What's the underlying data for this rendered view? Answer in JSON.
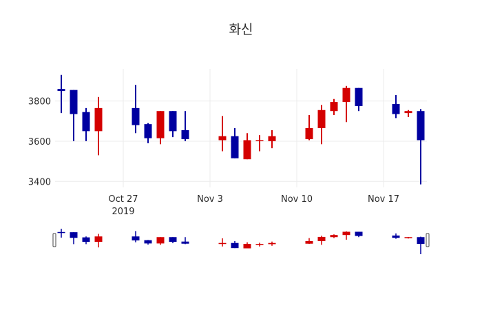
{
  "title": "화신",
  "colors": {
    "increasing": "#d40000",
    "decreasing": "#0000a0",
    "grid": "#ebebeb",
    "text": "#2a2a2a"
  },
  "chart_data": {
    "type": "candlestick",
    "title": "화신",
    "xlabel": "",
    "ylabel": "",
    "ylim": [
      3370,
      3960
    ],
    "yticks": [
      3400,
      3600,
      3800
    ],
    "xticks": [
      {
        "date": "2019-10-27",
        "label": "Oct 27",
        "sublabel": "2019"
      },
      {
        "date": "2019-11-03",
        "label": "Nov 3",
        "sublabel": ""
      },
      {
        "date": "2019-11-10",
        "label": "Nov 10",
        "sublabel": ""
      },
      {
        "date": "2019-11-17",
        "label": "Nov 17",
        "sublabel": ""
      }
    ],
    "xrange": [
      "2019-10-21T12:00",
      "2019-11-20T12:00"
    ],
    "rangeslider": true,
    "grid": true,
    "legend": false,
    "series": [
      {
        "date": "2019-10-22",
        "open": 3860,
        "high": 3930,
        "low": 3740,
        "close": 3850
      },
      {
        "date": "2019-10-23",
        "open": 3855,
        "high": 3855,
        "low": 3600,
        "close": 3735
      },
      {
        "date": "2019-10-24",
        "open": 3745,
        "high": 3765,
        "low": 3600,
        "close": 3650
      },
      {
        "date": "2019-10-25",
        "open": 3650,
        "high": 3820,
        "low": 3530,
        "close": 3765
      },
      {
        "date": "2019-10-28",
        "open": 3765,
        "high": 3880,
        "low": 3640,
        "close": 3680
      },
      {
        "date": "2019-10-29",
        "open": 3685,
        "high": 3690,
        "low": 3590,
        "close": 3615
      },
      {
        "date": "2019-10-30",
        "open": 3615,
        "high": 3750,
        "low": 3585,
        "close": 3750
      },
      {
        "date": "2019-10-31",
        "open": 3750,
        "high": 3750,
        "low": 3620,
        "close": 3650
      },
      {
        "date": "2019-11-01",
        "open": 3655,
        "high": 3750,
        "low": 3600,
        "close": 3610
      },
      {
        "date": "2019-11-04",
        "open": 3605,
        "high": 3725,
        "low": 3550,
        "close": 3625
      },
      {
        "date": "2019-11-05",
        "open": 3625,
        "high": 3665,
        "low": 3515,
        "close": 3515
      },
      {
        "date": "2019-11-06",
        "open": 3510,
        "high": 3640,
        "low": 3510,
        "close": 3605
      },
      {
        "date": "2019-11-07",
        "open": 3600,
        "high": 3630,
        "low": 3550,
        "close": 3605
      },
      {
        "date": "2019-11-08",
        "open": 3600,
        "high": 3655,
        "low": 3565,
        "close": 3625
      },
      {
        "date": "2019-11-11",
        "open": 3610,
        "high": 3730,
        "low": 3605,
        "close": 3665
      },
      {
        "date": "2019-11-12",
        "open": 3665,
        "high": 3780,
        "low": 3585,
        "close": 3755
      },
      {
        "date": "2019-11-13",
        "open": 3750,
        "high": 3810,
        "low": 3730,
        "close": 3795
      },
      {
        "date": "2019-11-14",
        "open": 3795,
        "high": 3875,
        "low": 3695,
        "close": 3865
      },
      {
        "date": "2019-11-15",
        "open": 3865,
        "high": 3865,
        "low": 3750,
        "close": 3775
      },
      {
        "date": "2019-11-18",
        "open": 3785,
        "high": 3830,
        "low": 3715,
        "close": 3735
      },
      {
        "date": "2019-11-19",
        "open": 3740,
        "high": 3755,
        "low": 3720,
        "close": 3750
      },
      {
        "date": "2019-11-20",
        "open": 3750,
        "high": 3760,
        "low": 3385,
        "close": 3605
      }
    ]
  }
}
